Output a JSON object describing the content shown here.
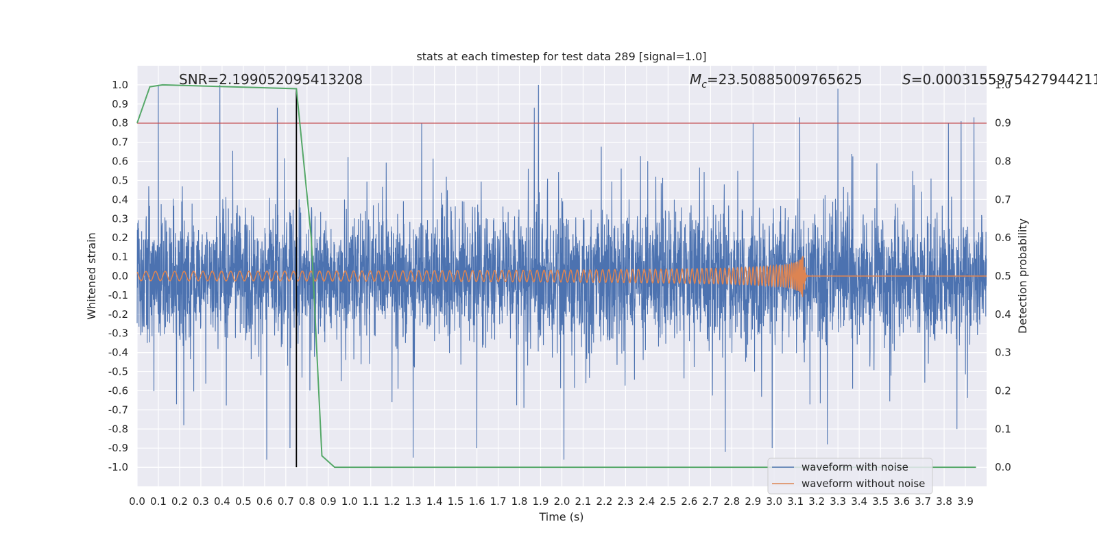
{
  "chart_data": {
    "type": "line",
    "title": "stats at each timestep for test data 289 [signal=1.0]",
    "xlabel": "Time (s)",
    "ylabel": "Whitened strain",
    "y2label": "Detection probability",
    "xlim": [
      0.0,
      4.0
    ],
    "ylim": [
      -1.1,
      1.1
    ],
    "y2lim": [
      -0.05,
      1.05
    ],
    "x_ticks": [
      0.0,
      0.1,
      0.2,
      0.3,
      0.4,
      0.5,
      0.6,
      0.7,
      0.8,
      0.9,
      1.0,
      1.1,
      1.2,
      1.3,
      1.4,
      1.5,
      1.6,
      1.7,
      1.8,
      1.9,
      2.0,
      2.1,
      2.2,
      2.3,
      2.4,
      2.5,
      2.6,
      2.7,
      2.8,
      2.9,
      3.0,
      3.1,
      3.2,
      3.3,
      3.4,
      3.5,
      3.6,
      3.7,
      3.8,
      3.9
    ],
    "x_tick_labels": [
      "0.0",
      "0.1",
      "0.2",
      "0.3",
      "0.4",
      "0.5",
      "0.6",
      "0.7",
      "0.8",
      "0.9",
      "1.0",
      "1.1",
      "1.2",
      "1.3",
      "1.4",
      "1.5",
      "1.6",
      "1.7",
      "1.8",
      "1.9",
      "2.0",
      "2.1",
      "2.2",
      "2.3",
      "2.4",
      "2.5",
      "2.6",
      "2.7",
      "2.8",
      "2.9",
      "3.0",
      "3.1",
      "3.2",
      "3.3",
      "3.4",
      "3.5",
      "3.6",
      "3.7",
      "3.8",
      "3.9"
    ],
    "y_ticks": [
      1.0,
      0.9,
      0.8,
      0.7,
      0.6,
      0.5,
      0.4,
      0.3,
      0.2,
      0.1,
      0.0,
      -0.1,
      -0.2,
      -0.3,
      -0.4,
      -0.5,
      -0.6,
      -0.7,
      -0.8,
      -0.9,
      -1.0
    ],
    "y_tick_labels": [
      "1.0",
      "0.9",
      "0.8",
      "0.7",
      "0.6",
      "0.5",
      "0.4",
      "0.3",
      "0.2",
      "0.1",
      "0.0",
      "-0.1",
      "-0.2",
      "-0.3",
      "-0.4",
      "-0.5",
      "-0.6",
      "-0.7",
      "-0.8",
      "-0.9",
      "-1.0"
    ],
    "y2_ticks": [
      1.0,
      0.9,
      0.8,
      0.7,
      0.6,
      0.5,
      0.4,
      0.3,
      0.2,
      0.1,
      0.0
    ],
    "y2_tick_labels": [
      "1.0",
      "0.9",
      "0.8",
      "0.7",
      "0.6",
      "0.5",
      "0.4",
      "0.3",
      "0.2",
      "0.1",
      "0.0"
    ],
    "annotations": {
      "snr": "SNR=2.199052095413208",
      "mc_symbol": "M",
      "mc_subscript": "c",
      "mc_value": "=23.50885009765625",
      "s_symbol": "S",
      "s_value": "=0.0003155975427944211"
    },
    "legend": {
      "placement": "bottom-right",
      "entries": [
        "waveform with noise",
        "waveform without noise"
      ]
    },
    "threshold_line": {
      "axis": "y2",
      "value": 0.9,
      "color": "#c44e52"
    },
    "marker_line": {
      "x": 0.75,
      "color": "#000000"
    },
    "series": [
      {
        "name": "waveform with noise",
        "axis": "y",
        "color": "#4c72b0",
        "style": "dense noise, typical amplitude about ±0.4 with spikes",
        "duration_s": 4.0,
        "samples": 4096,
        "spikes": [
          {
            "x": 0.1,
            "y": 1.0
          },
          {
            "x": 0.39,
            "y": 1.0
          },
          {
            "x": 0.66,
            "y": 0.88
          },
          {
            "x": 1.34,
            "y": 0.8
          },
          {
            "x": 1.87,
            "y": 0.88
          },
          {
            "x": 1.89,
            "y": 1.0
          },
          {
            "x": 2.9,
            "y": 0.8
          },
          {
            "x": 3.12,
            "y": 0.83
          },
          {
            "x": 3.3,
            "y": 0.98
          },
          {
            "x": 3.82,
            "y": 0.8
          },
          {
            "x": 3.88,
            "y": 0.81
          },
          {
            "x": 3.94,
            "y": 0.83
          },
          {
            "x": 0.61,
            "y": -0.96
          },
          {
            "x": 0.72,
            "y": -0.9
          },
          {
            "x": 1.3,
            "y": -0.95
          },
          {
            "x": 1.6,
            "y": -0.9
          },
          {
            "x": 2.01,
            "y": -0.96
          },
          {
            "x": 2.77,
            "y": -0.92
          },
          {
            "x": 2.99,
            "y": -0.9
          },
          {
            "x": 3.25,
            "y": -0.88
          },
          {
            "x": 0.22,
            "y": -0.78
          },
          {
            "x": 3.86,
            "y": -0.8
          }
        ]
      },
      {
        "name": "waveform without noise",
        "axis": "y",
        "color": "#dd8452",
        "style": "chirp, amplitude grows toward merger near 3.14 s (peak about ±0.13)",
        "merger_time_s": 3.14,
        "peak_amplitude": 0.13
      },
      {
        "name": "detection probability",
        "axis": "y2",
        "color": "#55a868",
        "x": [
          0.0,
          0.06,
          0.12,
          0.75,
          0.82,
          0.87,
          0.93,
          1.0,
          3.95
        ],
        "values": [
          0.9,
          0.995,
          1.0,
          0.99,
          0.6,
          0.03,
          0.0,
          0.0,
          0.0
        ]
      }
    ]
  }
}
